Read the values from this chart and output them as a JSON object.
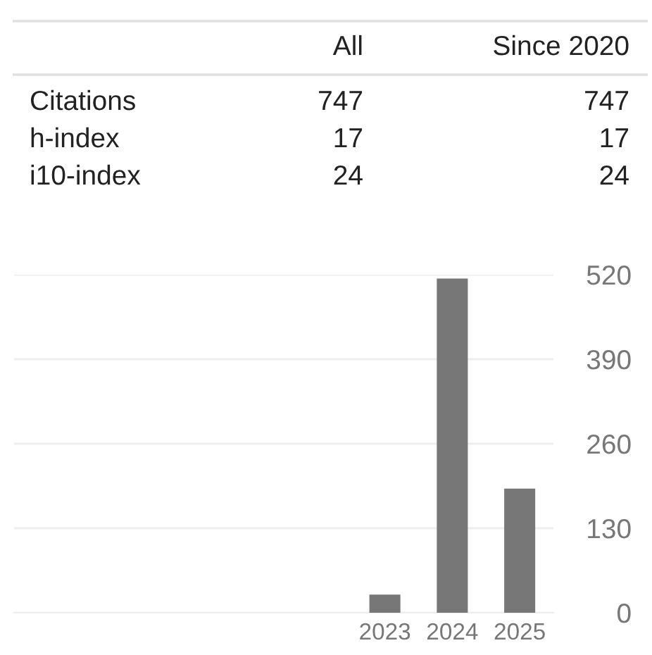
{
  "chart_data": [
    {
      "type": "other",
      "categories": [
        "Citations",
        "h-index",
        "i10-index"
      ],
      "series": [
        {
          "name": "All",
          "values": [
            747,
            17,
            24
          ]
        },
        {
          "name": "Since 2020",
          "values": [
            747,
            17,
            24
          ]
        }
      ],
      "data_labels": true
    },
    {
      "type": "bar",
      "categories": [
        null,
        null,
        null,
        null,
        null,
        "2023",
        "2024",
        "2025"
      ],
      "values": [
        null,
        null,
        null,
        null,
        null,
        28,
        514,
        191
      ],
      "color": "#777777",
      "ylim": [
        0,
        520
      ],
      "yticks": [
        0,
        130,
        260,
        390,
        520
      ],
      "grid": "y"
    }
  ]
}
